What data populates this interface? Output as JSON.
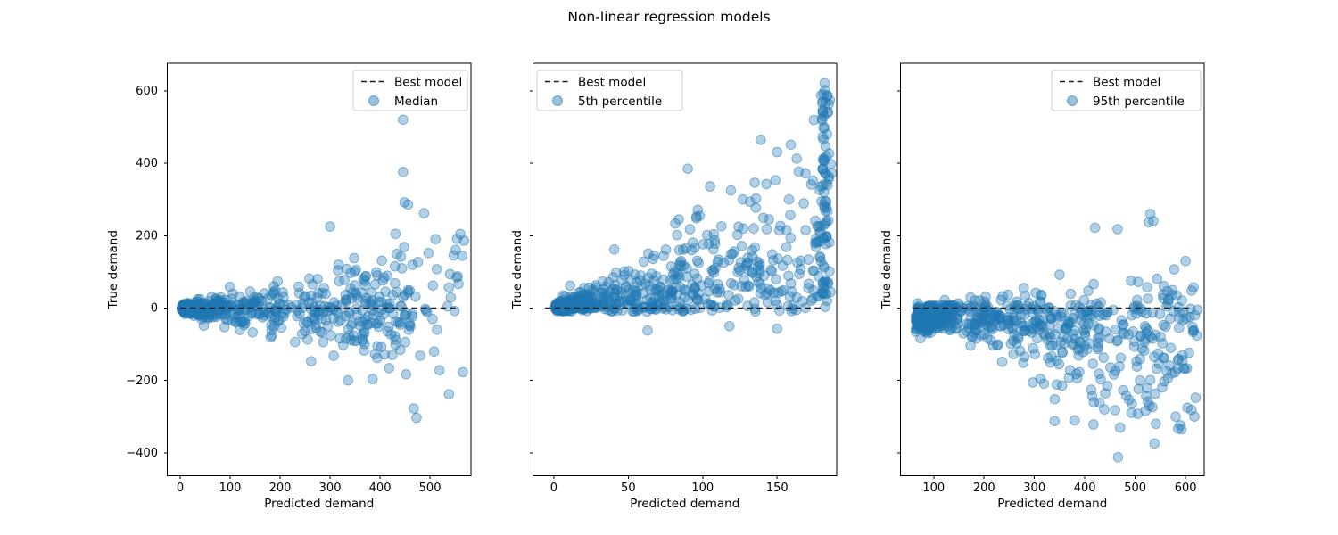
{
  "title": "Non-linear regression models",
  "style": {
    "point_color": "#1f77b4",
    "point_fill_opacity": 0.35,
    "point_edge_opacity": 0.5,
    "line_color": "#1c1c1c",
    "spine_color": "#000000",
    "legend_border": "#cccccc",
    "legend_bg": "#ffffff"
  },
  "axes_shared": {
    "ylabel": "True demand",
    "xlabel": "Predicted demand",
    "ylim": [
      -463,
      676
    ],
    "yticks": [
      -400,
      -200,
      0,
      200,
      400,
      600
    ],
    "ytick_labels": [
      "−400",
      "−200",
      "0",
      "200",
      "400",
      "600"
    ]
  },
  "chart_data": [
    {
      "type": "scatter",
      "name": "median",
      "xlabel": "Predicted demand",
      "ylabel": "True demand",
      "legend_labels": [
        "Best model",
        "Median"
      ],
      "legend_loc": "upper-right",
      "show_ytick_labels": true,
      "xlim": [
        -26,
        582
      ],
      "xticks": [
        0,
        100,
        200,
        300,
        400,
        500
      ],
      "xtick_labels": [
        "0",
        "100",
        "200",
        "300",
        "400",
        "500"
      ],
      "zero_line": {
        "y": 0,
        "x_start": 0,
        "x_end": 557
      },
      "clusters": [
        {
          "n": 270,
          "seed": 11,
          "x": {
            "dist": "absnorm",
            "mu": 3,
            "sigma": 21,
            "min": -8,
            "max": 575
          },
          "y": {
            "dist": "norm",
            "offset": 0,
            "base": 3.5,
            "slope": 0.09
          }
        },
        {
          "n": 430,
          "seed": 12,
          "x": {
            "dist": "power",
            "min": 5,
            "max": 460,
            "pow": 1.5
          },
          "y": {
            "dist": "norm",
            "offset": -2,
            "base": 6,
            "slope": 0.155
          }
        },
        {
          "n": 60,
          "seed": 13,
          "x": {
            "dist": "power",
            "min": 330,
            "max": 565,
            "pow": 1.0
          },
          "y": {
            "dist": "norm",
            "offset": 0,
            "base": 12,
            "slope": 0.17
          }
        }
      ],
      "outliers": [
        [
          446,
          520
        ],
        [
          446,
          376
        ],
        [
          449,
          292
        ],
        [
          456,
          286
        ],
        [
          473,
          -303
        ],
        [
          538,
          -238
        ],
        [
          519,
          -172
        ],
        [
          566,
          -177
        ],
        [
          553,
          85
        ],
        [
          511,
          190
        ],
        [
          497,
          152
        ],
        [
          300,
          225
        ],
        [
          336,
          -200
        ],
        [
          385,
          -196
        ],
        [
          452,
          -183
        ],
        [
          431,
          205
        ],
        [
          418,
          -166
        ],
        [
          262,
          -147
        ],
        [
          554,
          191
        ],
        [
          568,
          186
        ],
        [
          488,
          262
        ],
        [
          508,
          -120
        ]
      ]
    },
    {
      "type": "scatter",
      "name": "5th-percentile",
      "xlabel": "Predicted demand",
      "ylabel": "True demand",
      "legend_labels": [
        "Best model",
        "5th percentile"
      ],
      "legend_loc": "upper-left",
      "show_ytick_labels": false,
      "xlim": [
        -14,
        190
      ],
      "xticks": [
        0,
        50,
        100,
        150
      ],
      "xtick_labels": [
        "0",
        "50",
        "100",
        "150"
      ],
      "zero_line": {
        "y": 0,
        "x_start": -6,
        "x_end": 181
      },
      "clusters": [
        {
          "n": 200,
          "seed": 21,
          "x": {
            "dist": "absnorm",
            "mu": 1,
            "sigma": 13,
            "min": -6,
            "max": 182
          },
          "y": {
            "dist": "halfnorm",
            "sign": 1,
            "offset": -3,
            "base": 7,
            "slope": 0.5,
            "min": -20
          }
        },
        {
          "n": 470,
          "seed": 22,
          "x": {
            "dist": "power",
            "min": 2,
            "max": 180,
            "pow": 1.25
          },
          "y": {
            "dist": "halfnorm",
            "sign": 1,
            "offset": -10,
            "base": 12,
            "slope": 0.95,
            "min": -48
          }
        },
        {
          "n": 88,
          "seed": 23,
          "x": {
            "dist": "norm",
            "mu": 182.5,
            "sigma": 1.8,
            "min": 177,
            "max": 187
          },
          "y": {
            "dist": "uniform",
            "min": 2,
            "max": 622,
            "pow": 0.85
          }
        }
      ],
      "outliers": [
        [
          90,
          385
        ],
        [
          139,
          465
        ],
        [
          105,
          336
        ],
        [
          127,
          300
        ],
        [
          63,
          -62
        ],
        [
          150,
          -57
        ],
        [
          118,
          -50
        ],
        [
          169,
          372
        ],
        [
          174,
          352
        ],
        [
          158,
          300
        ],
        [
          98,
          255
        ],
        [
          143,
          218
        ]
      ]
    },
    {
      "type": "scatter",
      "name": "95th-percentile",
      "xlabel": "Predicted demand",
      "ylabel": "True demand",
      "legend_labels": [
        "Best model",
        "95th percentile"
      ],
      "legend_loc": "upper-right",
      "show_ytick_labels": false,
      "xlim": [
        34,
        637
      ],
      "xticks": [
        100,
        200,
        300,
        400,
        500,
        600
      ],
      "xtick_labels": [
        "100",
        "200",
        "300",
        "400",
        "500",
        "600"
      ],
      "zero_line": {
        "y": 0,
        "x_start": 60,
        "x_end": 607
      },
      "clusters": [
        {
          "n": 250,
          "seed": 31,
          "x": {
            "dist": "absnorm",
            "mu": 64,
            "sigma": 30,
            "min": 60,
            "max": 620
          },
          "y": {
            "dist": "norm",
            "offset": -32,
            "base": 14,
            "slope": 0.02
          }
        },
        {
          "n": 470,
          "seed": 32,
          "x": {
            "dist": "power",
            "min": 85,
            "max": 625,
            "pow": 1.35
          },
          "y": {
            "dist": "halfnorm",
            "sign": -1,
            "offset": 8,
            "base": 14,
            "slope": 0.33,
            "x0": 80,
            "min": -425
          }
        },
        {
          "n": 55,
          "seed": 33,
          "x": {
            "dist": "power",
            "min": 110,
            "max": 620,
            "pow": 1.0
          },
          "y": {
            "dist": "halfnorm",
            "sign": 1,
            "offset": 2,
            "base": 6,
            "slope": 0.1,
            "x0": 80
          }
        }
      ],
      "outliers": [
        [
          530,
          260
        ],
        [
          527,
          237
        ],
        [
          536,
          240
        ],
        [
          600,
          130
        ],
        [
          616,
          57
        ],
        [
          612,
          48
        ],
        [
          420,
          222
        ],
        [
          465,
          218
        ],
        [
          350,
          92
        ],
        [
          592,
          -335
        ],
        [
          466,
          -412
        ],
        [
          470,
          -330
        ],
        [
          505,
          -292
        ],
        [
          616,
          -62
        ],
        [
          340,
          -312
        ],
        [
          460,
          -282
        ],
        [
          380,
          -310
        ],
        [
          525,
          -258
        ],
        [
          528,
          -270
        ]
      ]
    }
  ]
}
